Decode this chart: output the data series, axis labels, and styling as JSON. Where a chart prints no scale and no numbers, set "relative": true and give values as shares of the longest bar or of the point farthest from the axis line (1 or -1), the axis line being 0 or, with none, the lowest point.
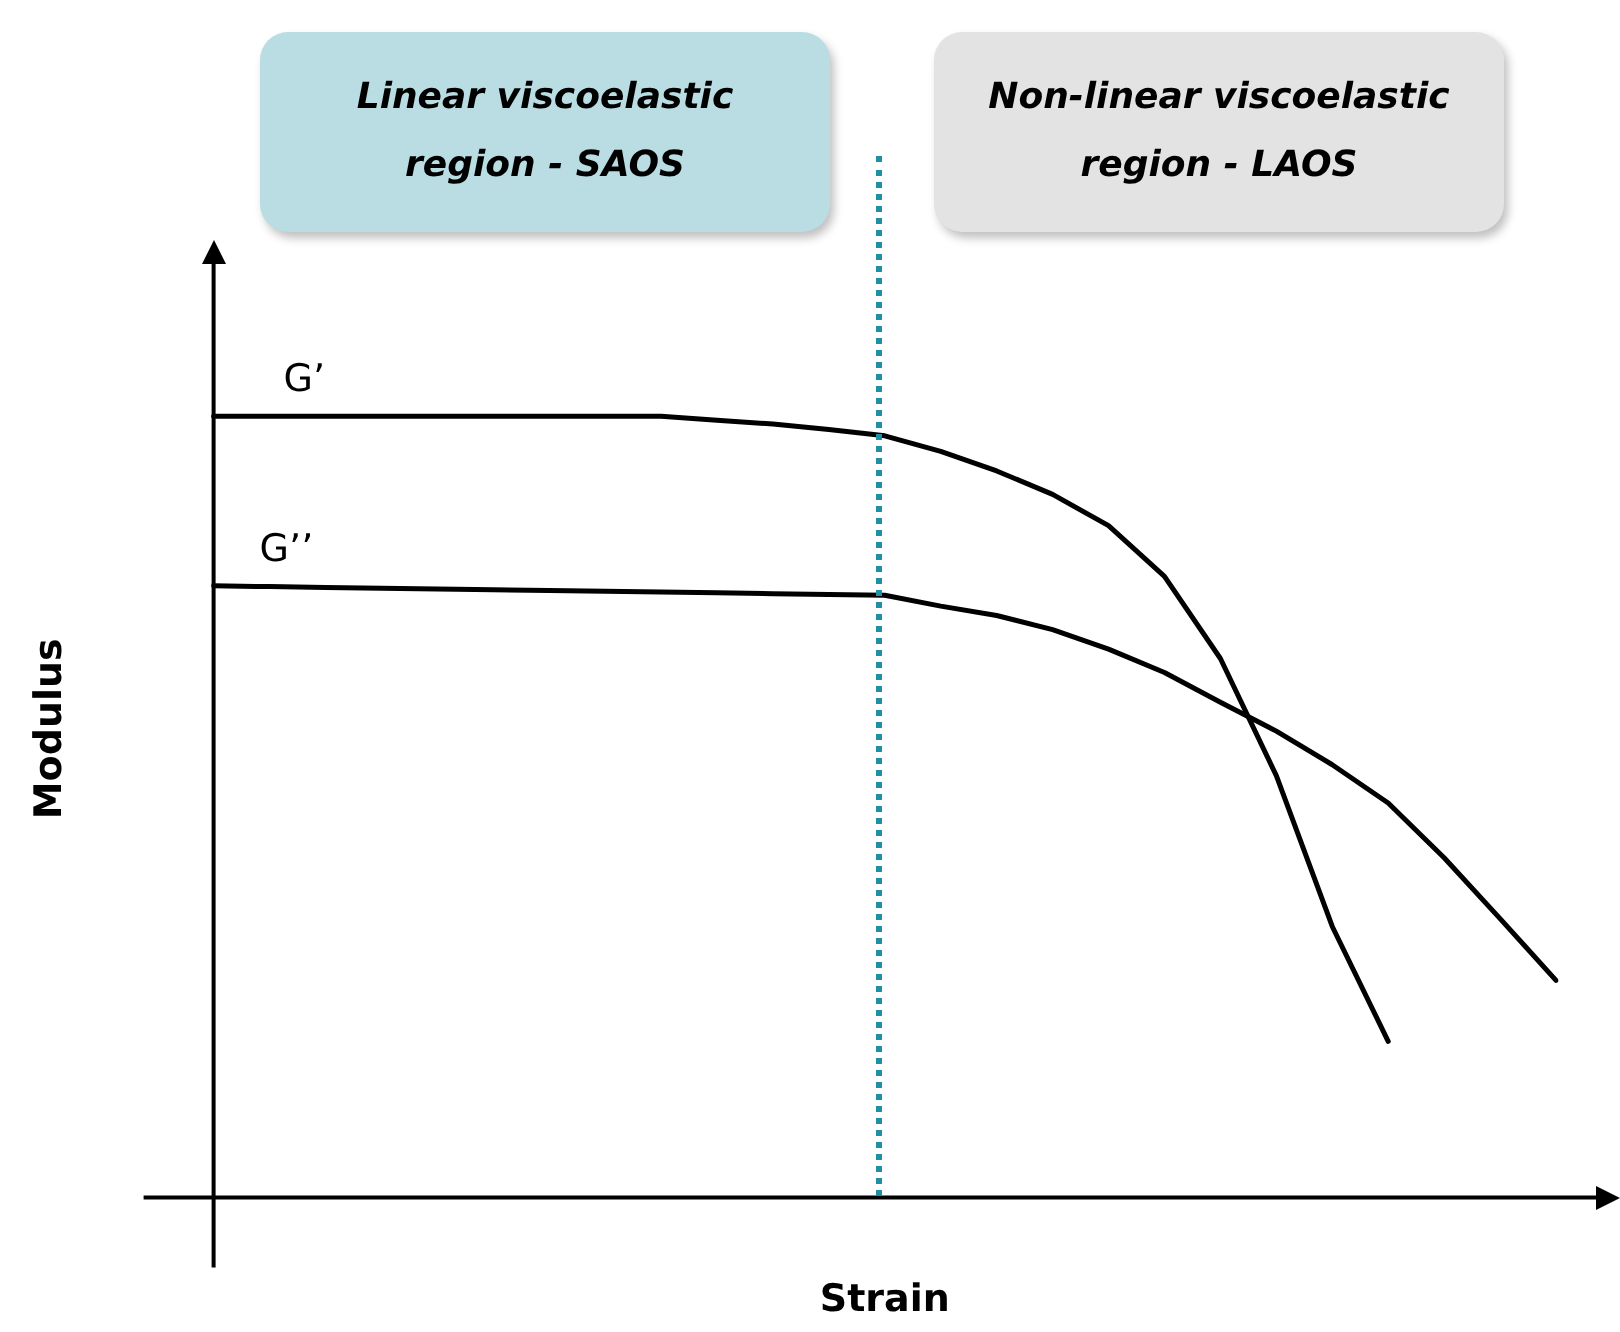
{
  "chart_data": {
    "type": "line",
    "relative": true,
    "xlabel": "Strain",
    "ylabel": "Modulus",
    "categories": [
      null,
      null,
      null,
      null,
      null,
      null,
      null,
      null,
      null,
      null,
      null,
      null,
      null,
      null,
      null,
      null,
      null,
      null,
      null,
      null,
      null,
      null,
      null,
      null,
      null
    ],
    "series": [
      {
        "name": "G’",
        "color": "#000000",
        "values": [
          1,
          1,
          1,
          1,
          1,
          1,
          1,
          1,
          1,
          0.995,
          0.99,
          0.983,
          0.975,
          0.955,
          0.93,
          0.9,
          0.86,
          0.795,
          0.69,
          0.54,
          0.347,
          0.2,
          null,
          null,
          null
        ]
      },
      {
        "name": "G’’",
        "color": "#000000",
        "values": [
          0.783,
          0.782,
          0.781,
          0.78,
          0.779,
          0.778,
          0.777,
          0.776,
          0.775,
          0.774,
          0.773,
          0.772,
          0.771,
          0.757,
          0.745,
          0.727,
          0.702,
          0.672,
          0.634,
          0.597,
          0.554,
          0.505,
          0.435,
          0.357,
          0.278
        ]
      }
    ],
    "annotations": [
      "Linear viscoelastic region - SAOS",
      "Non-linear viscoelastic region - LAOS"
    ]
  }
}
